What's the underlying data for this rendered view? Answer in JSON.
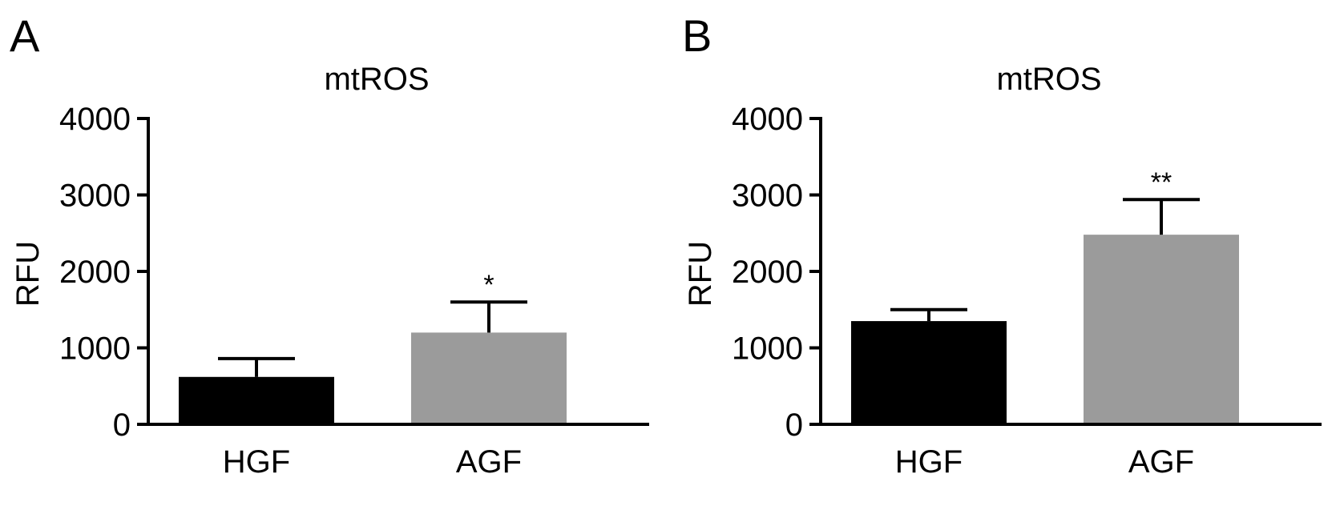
{
  "chart_data": [
    {
      "panel_label": "A",
      "type": "bar",
      "title": "mtROS",
      "xlabel": "",
      "ylabel": "RFU",
      "ylim": [
        0,
        4000
      ],
      "yticks": [
        "0",
        "1000",
        "2000",
        "3000",
        "4000"
      ],
      "categories": [
        "HGF",
        "AGF"
      ],
      "values": [
        620,
        1200
      ],
      "errors": [
        240,
        400
      ],
      "colors": [
        "#000000",
        "#9b9b9b"
      ],
      "significance": [
        "",
        "*"
      ],
      "grid": false
    },
    {
      "panel_label": "B",
      "type": "bar",
      "title": "mtROS",
      "xlabel": "",
      "ylabel": "RFU",
      "ylim": [
        0,
        4000
      ],
      "yticks": [
        "0",
        "1000",
        "2000",
        "3000",
        "4000"
      ],
      "categories": [
        "HGF",
        "AGF"
      ],
      "values": [
        1350,
        2480
      ],
      "errors": [
        150,
        460
      ],
      "colors": [
        "#000000",
        "#9b9b9b"
      ],
      "significance": [
        "",
        "**"
      ],
      "grid": false
    }
  ]
}
